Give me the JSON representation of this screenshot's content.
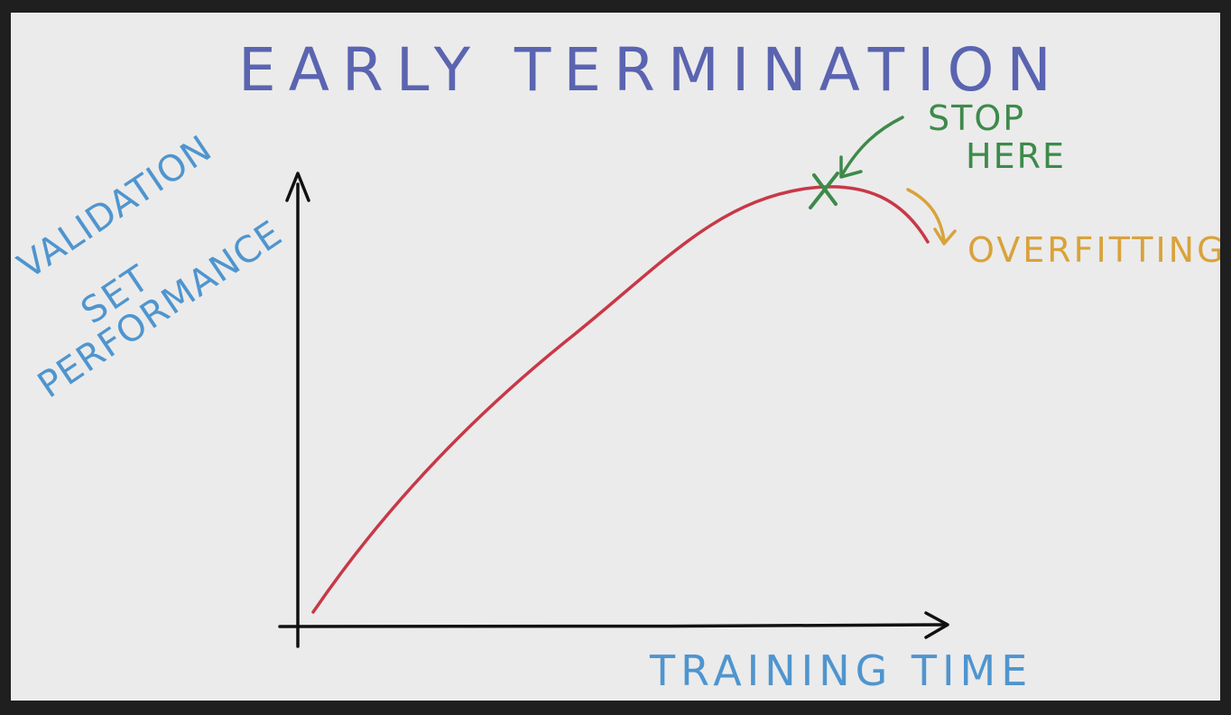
{
  "title": "EARLY TERMINATION",
  "y_axis_label": [
    "VALIDATION",
    "SET",
    "PERFORMANCE"
  ],
  "x_axis_label": "TRAINING TIME",
  "annotations": {
    "stop_label": [
      "STOP",
      "HERE"
    ],
    "overfitting_label": "OVERFITTING"
  },
  "colors": {
    "background": "#ebebeb",
    "frame": "#1f1f1f",
    "title": "#5a64b0",
    "axis_labels": "#4f95cf",
    "curve": "#c83848",
    "stop": "#3d8a4a",
    "overfitting": "#d9a23a",
    "axes": "#111111"
  }
}
